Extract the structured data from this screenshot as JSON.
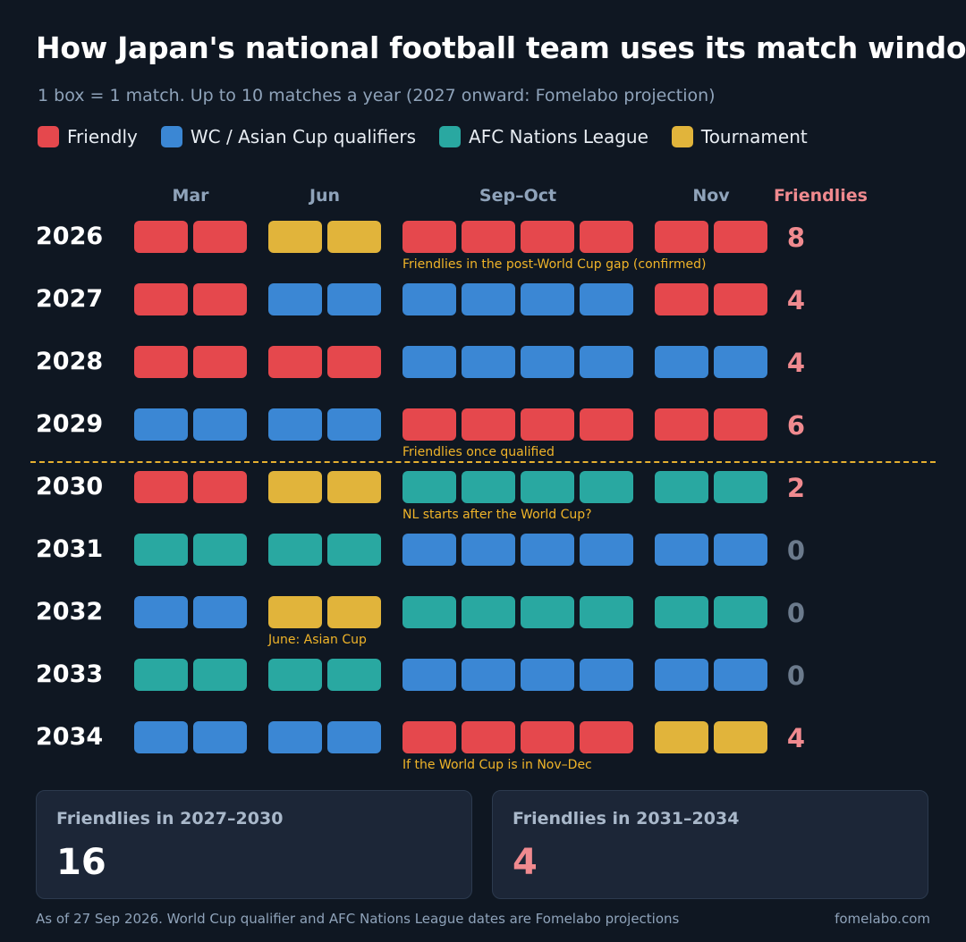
{
  "title": "How Japan's national football team uses its match windows",
  "subtitle": "1 box = 1 match. Up to 10 matches a year (2027 onward: Fomelabo projection)",
  "legend": [
    {
      "key": "friendly",
      "label": "Friendly",
      "color": "#e5484d"
    },
    {
      "key": "qualifier",
      "label": "WC / Asian Cup qualifiers",
      "color": "#3b87d4"
    },
    {
      "key": "nations",
      "label": "AFC Nations League",
      "color": "#29a8a1"
    },
    {
      "key": "tournament",
      "label": "Tournament",
      "color": "#e1b43b"
    }
  ],
  "chart_data": {
    "type": "table",
    "windows": [
      "Mar",
      "Jun",
      "Sep–Oct",
      "Nov"
    ],
    "count_header": "Friendlies",
    "rows": [
      {
        "year": "2026",
        "matches": [
          "friendly",
          "friendly",
          "tournament",
          "tournament",
          "friendly",
          "friendly",
          "friendly",
          "friendly",
          "friendly",
          "friendly"
        ],
        "friendlies": 8,
        "note": "Friendlies in the post-World Cup gap (confirmed)",
        "note_window": 2
      },
      {
        "year": "2027",
        "matches": [
          "friendly",
          "friendly",
          "qualifier",
          "qualifier",
          "qualifier",
          "qualifier",
          "qualifier",
          "qualifier",
          "friendly",
          "friendly"
        ],
        "friendlies": 4,
        "note": "",
        "note_window": 2
      },
      {
        "year": "2028",
        "matches": [
          "friendly",
          "friendly",
          "friendly",
          "friendly",
          "qualifier",
          "qualifier",
          "qualifier",
          "qualifier",
          "qualifier",
          "qualifier"
        ],
        "friendlies": 4,
        "note": "",
        "note_window": 2
      },
      {
        "year": "2029",
        "matches": [
          "qualifier",
          "qualifier",
          "qualifier",
          "qualifier",
          "friendly",
          "friendly",
          "friendly",
          "friendly",
          "friendly",
          "friendly"
        ],
        "friendlies": 6,
        "note": "Friendlies once qualified",
        "note_window": 2
      },
      {
        "year": "2030",
        "matches": [
          "friendly",
          "friendly",
          "tournament",
          "tournament",
          "nations",
          "nations",
          "nations",
          "nations",
          "nations",
          "nations"
        ],
        "friendlies": 2,
        "note": "NL starts after the World Cup?",
        "note_window": 2
      },
      {
        "year": "2031",
        "matches": [
          "nations",
          "nations",
          "nations",
          "nations",
          "qualifier",
          "qualifier",
          "qualifier",
          "qualifier",
          "qualifier",
          "qualifier"
        ],
        "friendlies": 0,
        "note": "",
        "note_window": 2
      },
      {
        "year": "2032",
        "matches": [
          "qualifier",
          "qualifier",
          "tournament",
          "tournament",
          "nations",
          "nations",
          "nations",
          "nations",
          "nations",
          "nations"
        ],
        "friendlies": 0,
        "note": "June: Asian Cup",
        "note_window": 1
      },
      {
        "year": "2033",
        "matches": [
          "nations",
          "nations",
          "nations",
          "nations",
          "qualifier",
          "qualifier",
          "qualifier",
          "qualifier",
          "qualifier",
          "qualifier"
        ],
        "friendlies": 0,
        "note": "",
        "note_window": 2
      },
      {
        "year": "2034",
        "matches": [
          "qualifier",
          "qualifier",
          "qualifier",
          "qualifier",
          "friendly",
          "friendly",
          "friendly",
          "friendly",
          "tournament",
          "tournament"
        ],
        "friendlies": 4,
        "note": "If the World Cup is in Nov–Dec",
        "note_window": 2
      }
    ],
    "divider_after_year": "2029",
    "count_colors": {
      "positive": "#f08a8f",
      "zero": "#6b7a8c"
    }
  },
  "cards": [
    {
      "label": "Friendlies in 2027–2030",
      "value": "16",
      "color": "#ffffff"
    },
    {
      "label": "Friendlies in 2031–2034",
      "value": "4",
      "color": "#f08a8f"
    }
  ],
  "footer": {
    "note": "As of 27 Sep 2026. World Cup qualifier and AFC Nations League dates are Fomelabo projections",
    "site": "fomelabo.com"
  }
}
